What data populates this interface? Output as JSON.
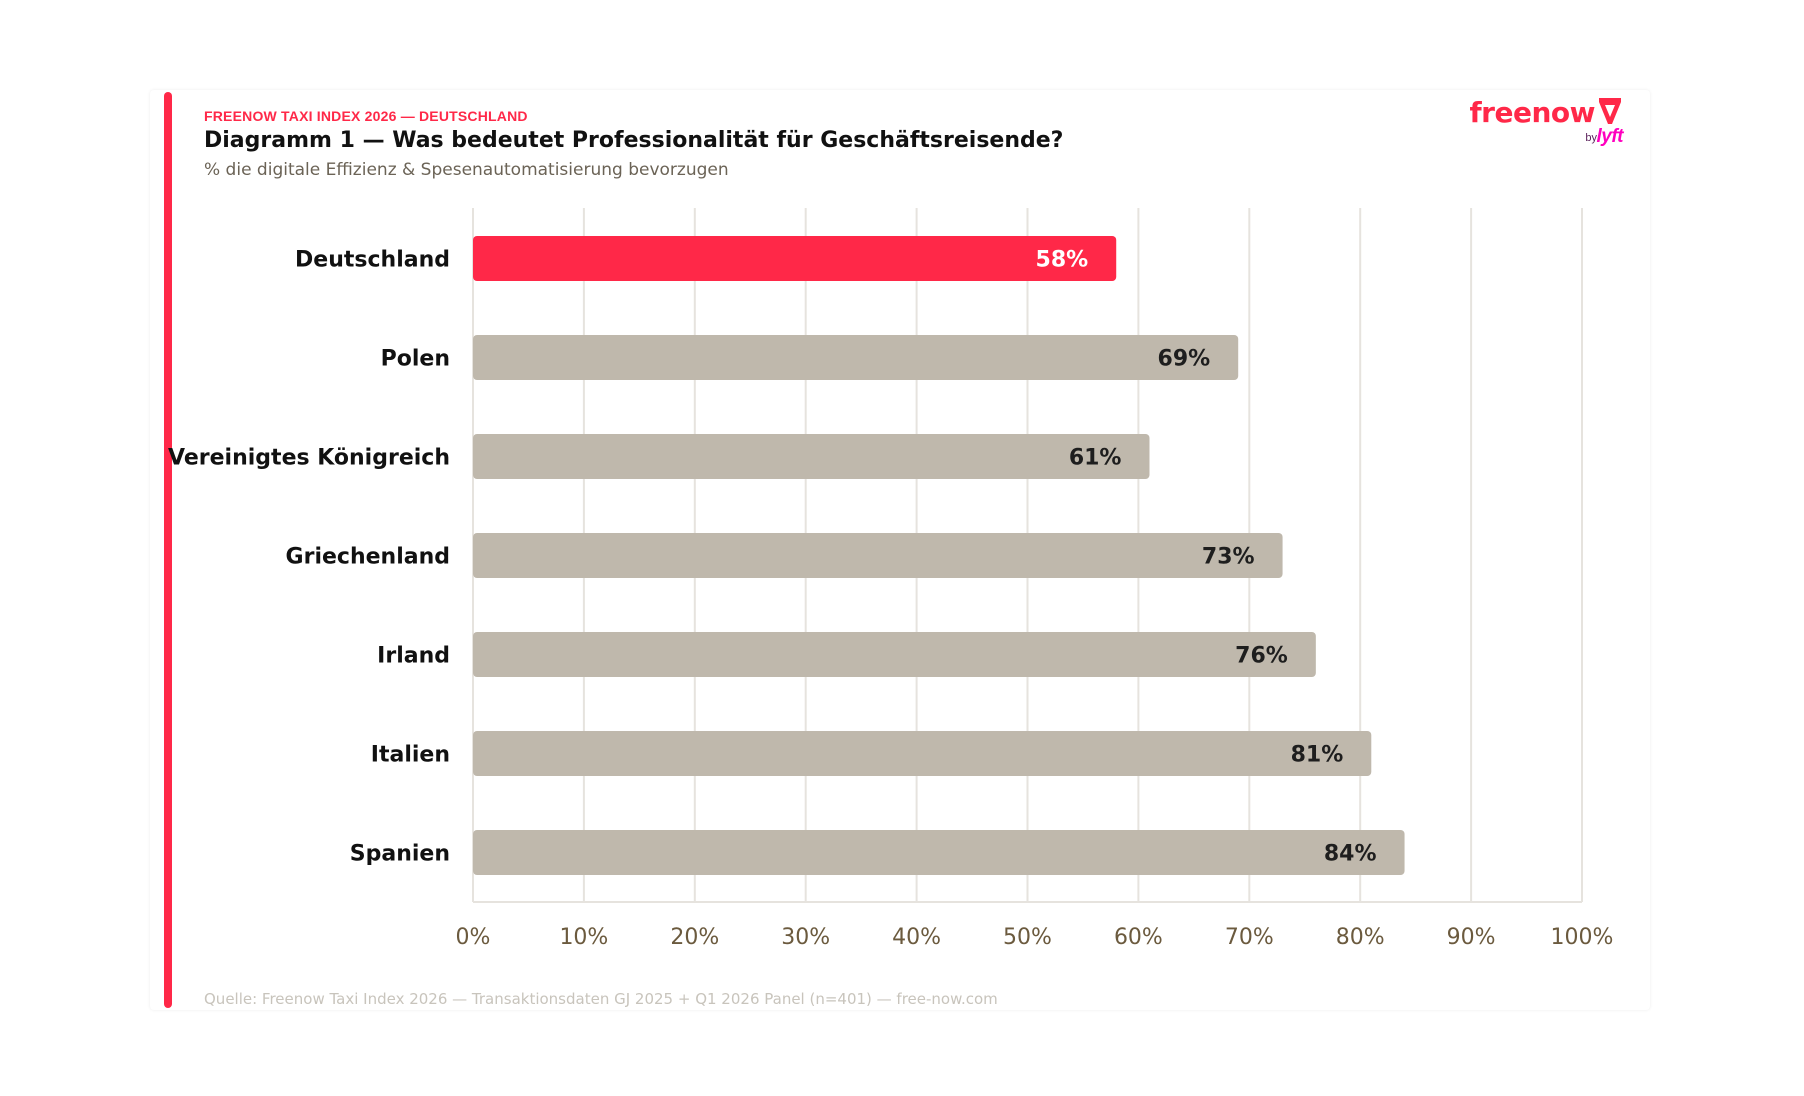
{
  "header": {
    "kicker": "FREENOW TAXI INDEX 2026 — DEUTSCHLAND",
    "title": "Diagramm 1 — Was bedeutet Professionalität für Geschäftsreisende?",
    "subtitle": "% die digitale Effizienz & Spesenautomatisierung bevorzugen"
  },
  "logo": {
    "wordmark": "freenow",
    "by": "by",
    "partner": "lyft",
    "mark_icon": "freenow-v-icon"
  },
  "footer": {
    "source": "Quelle: Freenow Taxi Index 2026 — Transaktionsdaten GJ 2025 + Q1 2026 Panel (n=401) — free-now.com"
  },
  "colors": {
    "accent": "#ff2848",
    "bar_default": "#bfb8ac",
    "grid": "#e6e3de",
    "tick_text": "#6b5a3e",
    "lyft_pink": "#ff00bf"
  },
  "chart_data": {
    "type": "bar",
    "orientation": "horizontal",
    "categories": [
      "Deutschland",
      "Polen",
      "Vereinigtes Königreich",
      "Griechenland",
      "Irland",
      "Italien",
      "Spanien"
    ],
    "values": [
      58,
      69,
      61,
      73,
      76,
      81,
      84
    ],
    "value_labels": [
      "58%",
      "69%",
      "61%",
      "73%",
      "76%",
      "81%",
      "84%"
    ],
    "highlight_index": 0,
    "xlim": [
      0,
      100
    ],
    "xticks": [
      0,
      10,
      20,
      30,
      40,
      50,
      60,
      70,
      80,
      90,
      100
    ],
    "xtick_labels": [
      "0%",
      "10%",
      "20%",
      "30%",
      "40%",
      "50%",
      "60%",
      "70%",
      "80%",
      "90%",
      "100%"
    ],
    "grid": "vertical",
    "legend": "none"
  }
}
